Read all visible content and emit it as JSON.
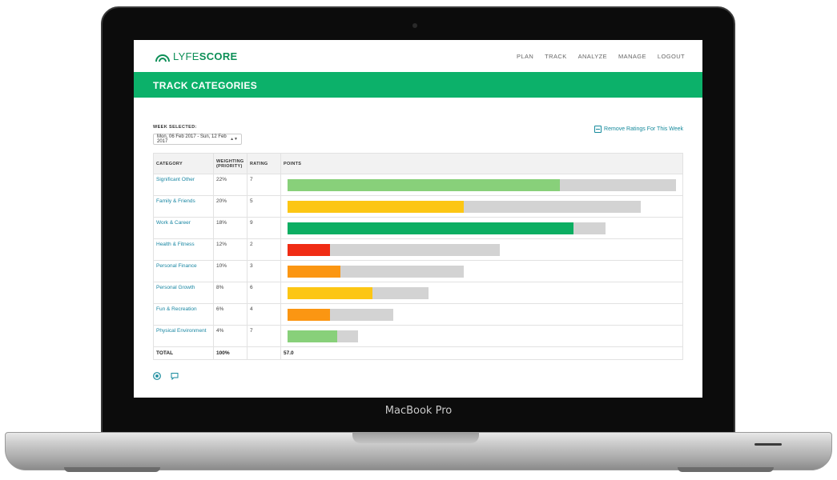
{
  "device_label": "MacBook Pro",
  "logo": {
    "part1": "LYFE",
    "part2": "SCORE"
  },
  "nav": [
    "PLAN",
    "TRACK",
    "ANALYZE",
    "MANAGE",
    "LOGOUT"
  ],
  "banner_title": "TRACK CATEGORIES",
  "week": {
    "label": "WEEK SELECTED:",
    "value": "Mon, 06 Feb 2017 - Sun, 12 Feb 2017"
  },
  "remove_link": "Remove Ratings For This Week",
  "table": {
    "headers": {
      "category": "CATEGORY",
      "weighting1": "WEIGHTING",
      "weighting2": "(PRIORITY)",
      "rating": "RATING",
      "points": "POINTS"
    },
    "rows": [
      {
        "category": "Significant Other",
        "weighting": "22%",
        "rating": "7",
        "max": 22,
        "points": 15.4,
        "color": "#88d07a"
      },
      {
        "category": "Family & Friends",
        "weighting": "20%",
        "rating": "5",
        "max": 20,
        "points": 10.0,
        "color": "#fcc614"
      },
      {
        "category": "Work & Career",
        "weighting": "18%",
        "rating": "9",
        "max": 18,
        "points": 16.2,
        "color": "#0cae62"
      },
      {
        "category": "Health & Fitness",
        "weighting": "12%",
        "rating": "2",
        "max": 12,
        "points": 2.4,
        "color": "#f02c14"
      },
      {
        "category": "Personal Finance",
        "weighting": "10%",
        "rating": "3",
        "max": 10,
        "points": 3.0,
        "color": "#fb9612"
      },
      {
        "category": "Personal Growth",
        "weighting": "8%",
        "rating": "6",
        "max": 8,
        "points": 4.8,
        "color": "#fcc614"
      },
      {
        "category": "Fun & Recreation",
        "weighting": "6%",
        "rating": "4",
        "max": 6,
        "points": 2.4,
        "color": "#fb9612"
      },
      {
        "category": "Physical Environment",
        "weighting": "4%",
        "rating": "7",
        "max": 4,
        "points": 2.8,
        "color": "#88d07a"
      }
    ],
    "total": {
      "label": "TOTAL",
      "weighting": "100%",
      "points": "57.0"
    },
    "scale_max": 22
  },
  "bottom_icons": [
    "stop-icon",
    "comment-icon"
  ]
}
